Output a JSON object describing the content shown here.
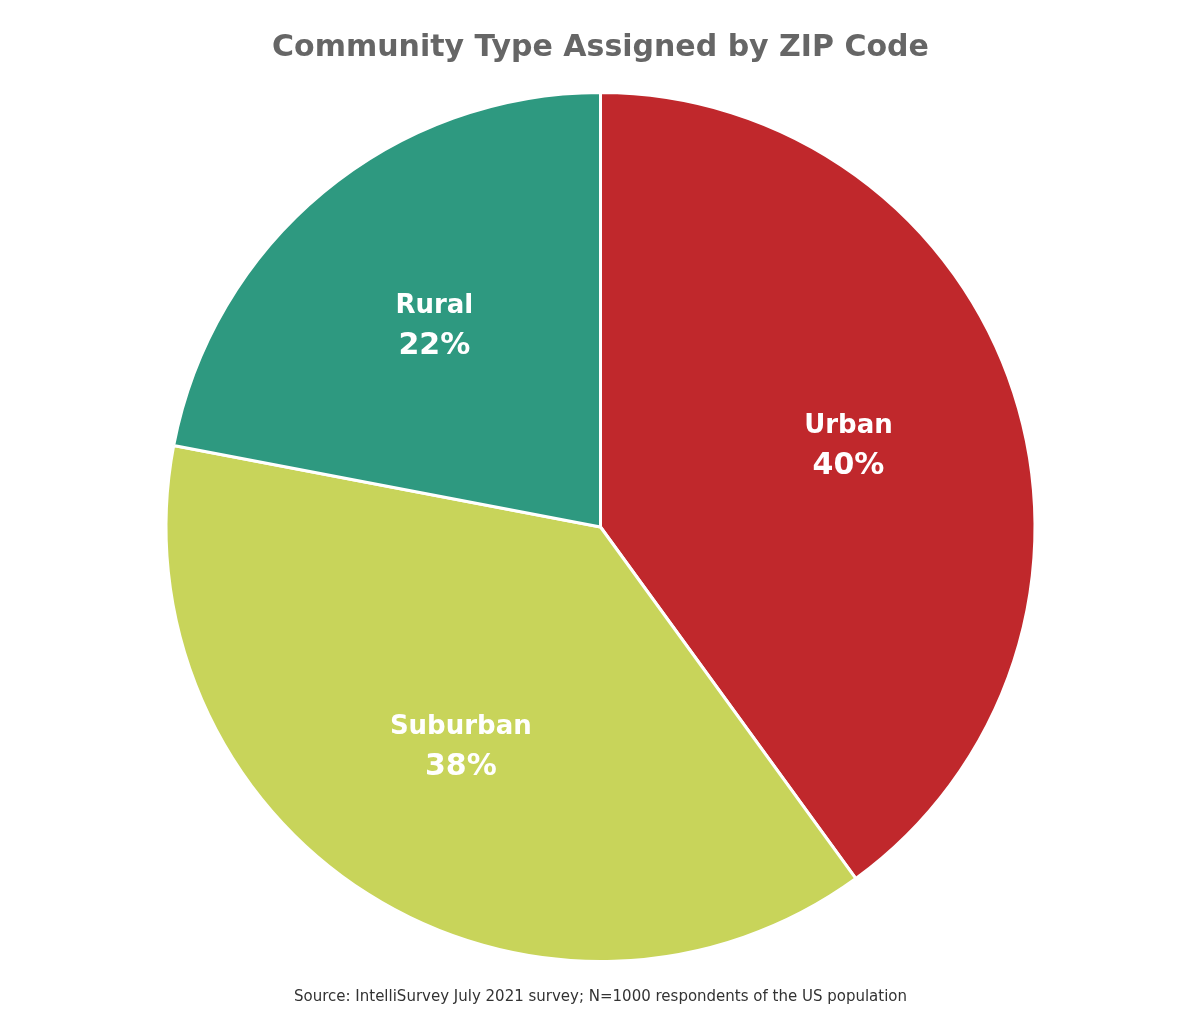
{
  "chart_data": {
    "type": "pie",
    "title": "Community Type Assigned by ZIP Code",
    "annotations": [
      "Source: IntelliSurvey July 2021 survey; N=1000 respondents of the US population"
    ],
    "categories": [
      "Urban",
      "Suburban",
      "Rural"
    ],
    "values": [
      40,
      38,
      22
    ],
    "value_labels": [
      "40%",
      "38%",
      "22%"
    ],
    "colors": [
      "#C0282C",
      "#C8D45A",
      "#2E9980"
    ],
    "data_labels": true,
    "legend": false
  }
}
